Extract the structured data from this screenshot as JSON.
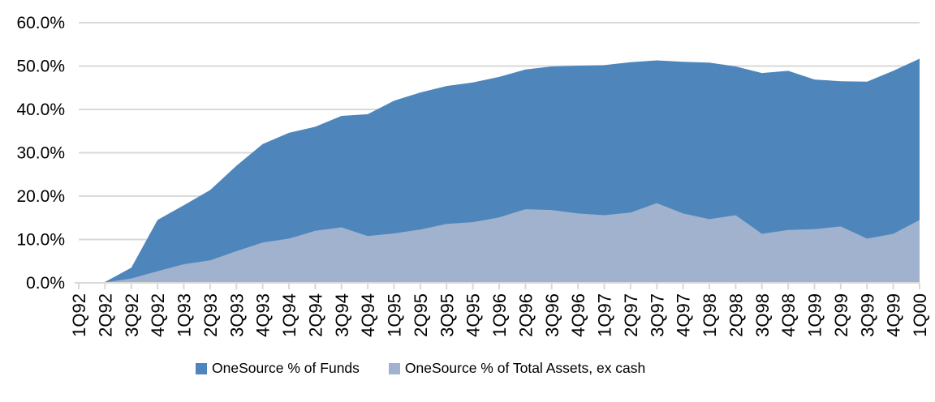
{
  "chart_data": {
    "type": "area",
    "title": "",
    "xlabel": "",
    "ylabel": "",
    "categories": [
      "1Q92",
      "2Q92",
      "3Q92",
      "4Q92",
      "1Q93",
      "2Q93",
      "3Q93",
      "4Q93",
      "1Q94",
      "2Q94",
      "3Q94",
      "4Q94",
      "1Q95",
      "2Q95",
      "3Q95",
      "4Q95",
      "1Q96",
      "2Q96",
      "3Q96",
      "4Q96",
      "1Q97",
      "2Q97",
      "3Q97",
      "4Q97",
      "1Q98",
      "2Q98",
      "3Q98",
      "4Q98",
      "1Q99",
      "2Q99",
      "3Q99",
      "4Q99",
      "1Q00"
    ],
    "series": [
      {
        "name": "OneSource % of Funds",
        "color": "#4E86BC",
        "values": [
          0.0,
          0.2,
          3.5,
          14.5,
          17.9,
          21.4,
          27.0,
          32.0,
          34.6,
          36.0,
          38.5,
          38.9,
          42.0,
          43.9,
          45.4,
          46.2,
          47.5,
          49.2,
          49.9,
          50.1,
          50.2,
          50.9,
          51.3,
          51.0,
          50.8,
          49.9,
          48.4,
          48.9,
          46.9,
          46.5,
          46.4,
          48.9,
          51.7
        ]
      },
      {
        "name": "OneSource % of Total Assets, ex cash",
        "color": "#A0B2CE",
        "values": [
          0.0,
          0.1,
          1.0,
          2.7,
          4.3,
          5.2,
          7.3,
          9.3,
          10.2,
          12.0,
          12.8,
          10.8,
          11.4,
          12.3,
          13.6,
          14.0,
          15.1,
          17.0,
          16.8,
          16.0,
          15.6,
          16.2,
          18.4,
          16.0,
          14.7,
          15.6,
          11.3,
          12.2,
          12.4,
          13.0,
          10.2,
          11.3,
          14.5
        ]
      }
    ],
    "ylim": [
      0,
      60
    ],
    "ytick_step": 10,
    "ytick_labels": [
      "0.0%",
      "10.0%",
      "20.0%",
      "30.0%",
      "40.0%",
      "50.0%",
      "60.0%"
    ],
    "grid": true,
    "legend_position": "bottom",
    "x_labels_rotated": true
  },
  "colors": {
    "gridline": "#D9D9D9",
    "axis": "#D9D9D9",
    "tick": "#D9D9D9",
    "text": "#000000",
    "background": "#FFFFFF"
  }
}
